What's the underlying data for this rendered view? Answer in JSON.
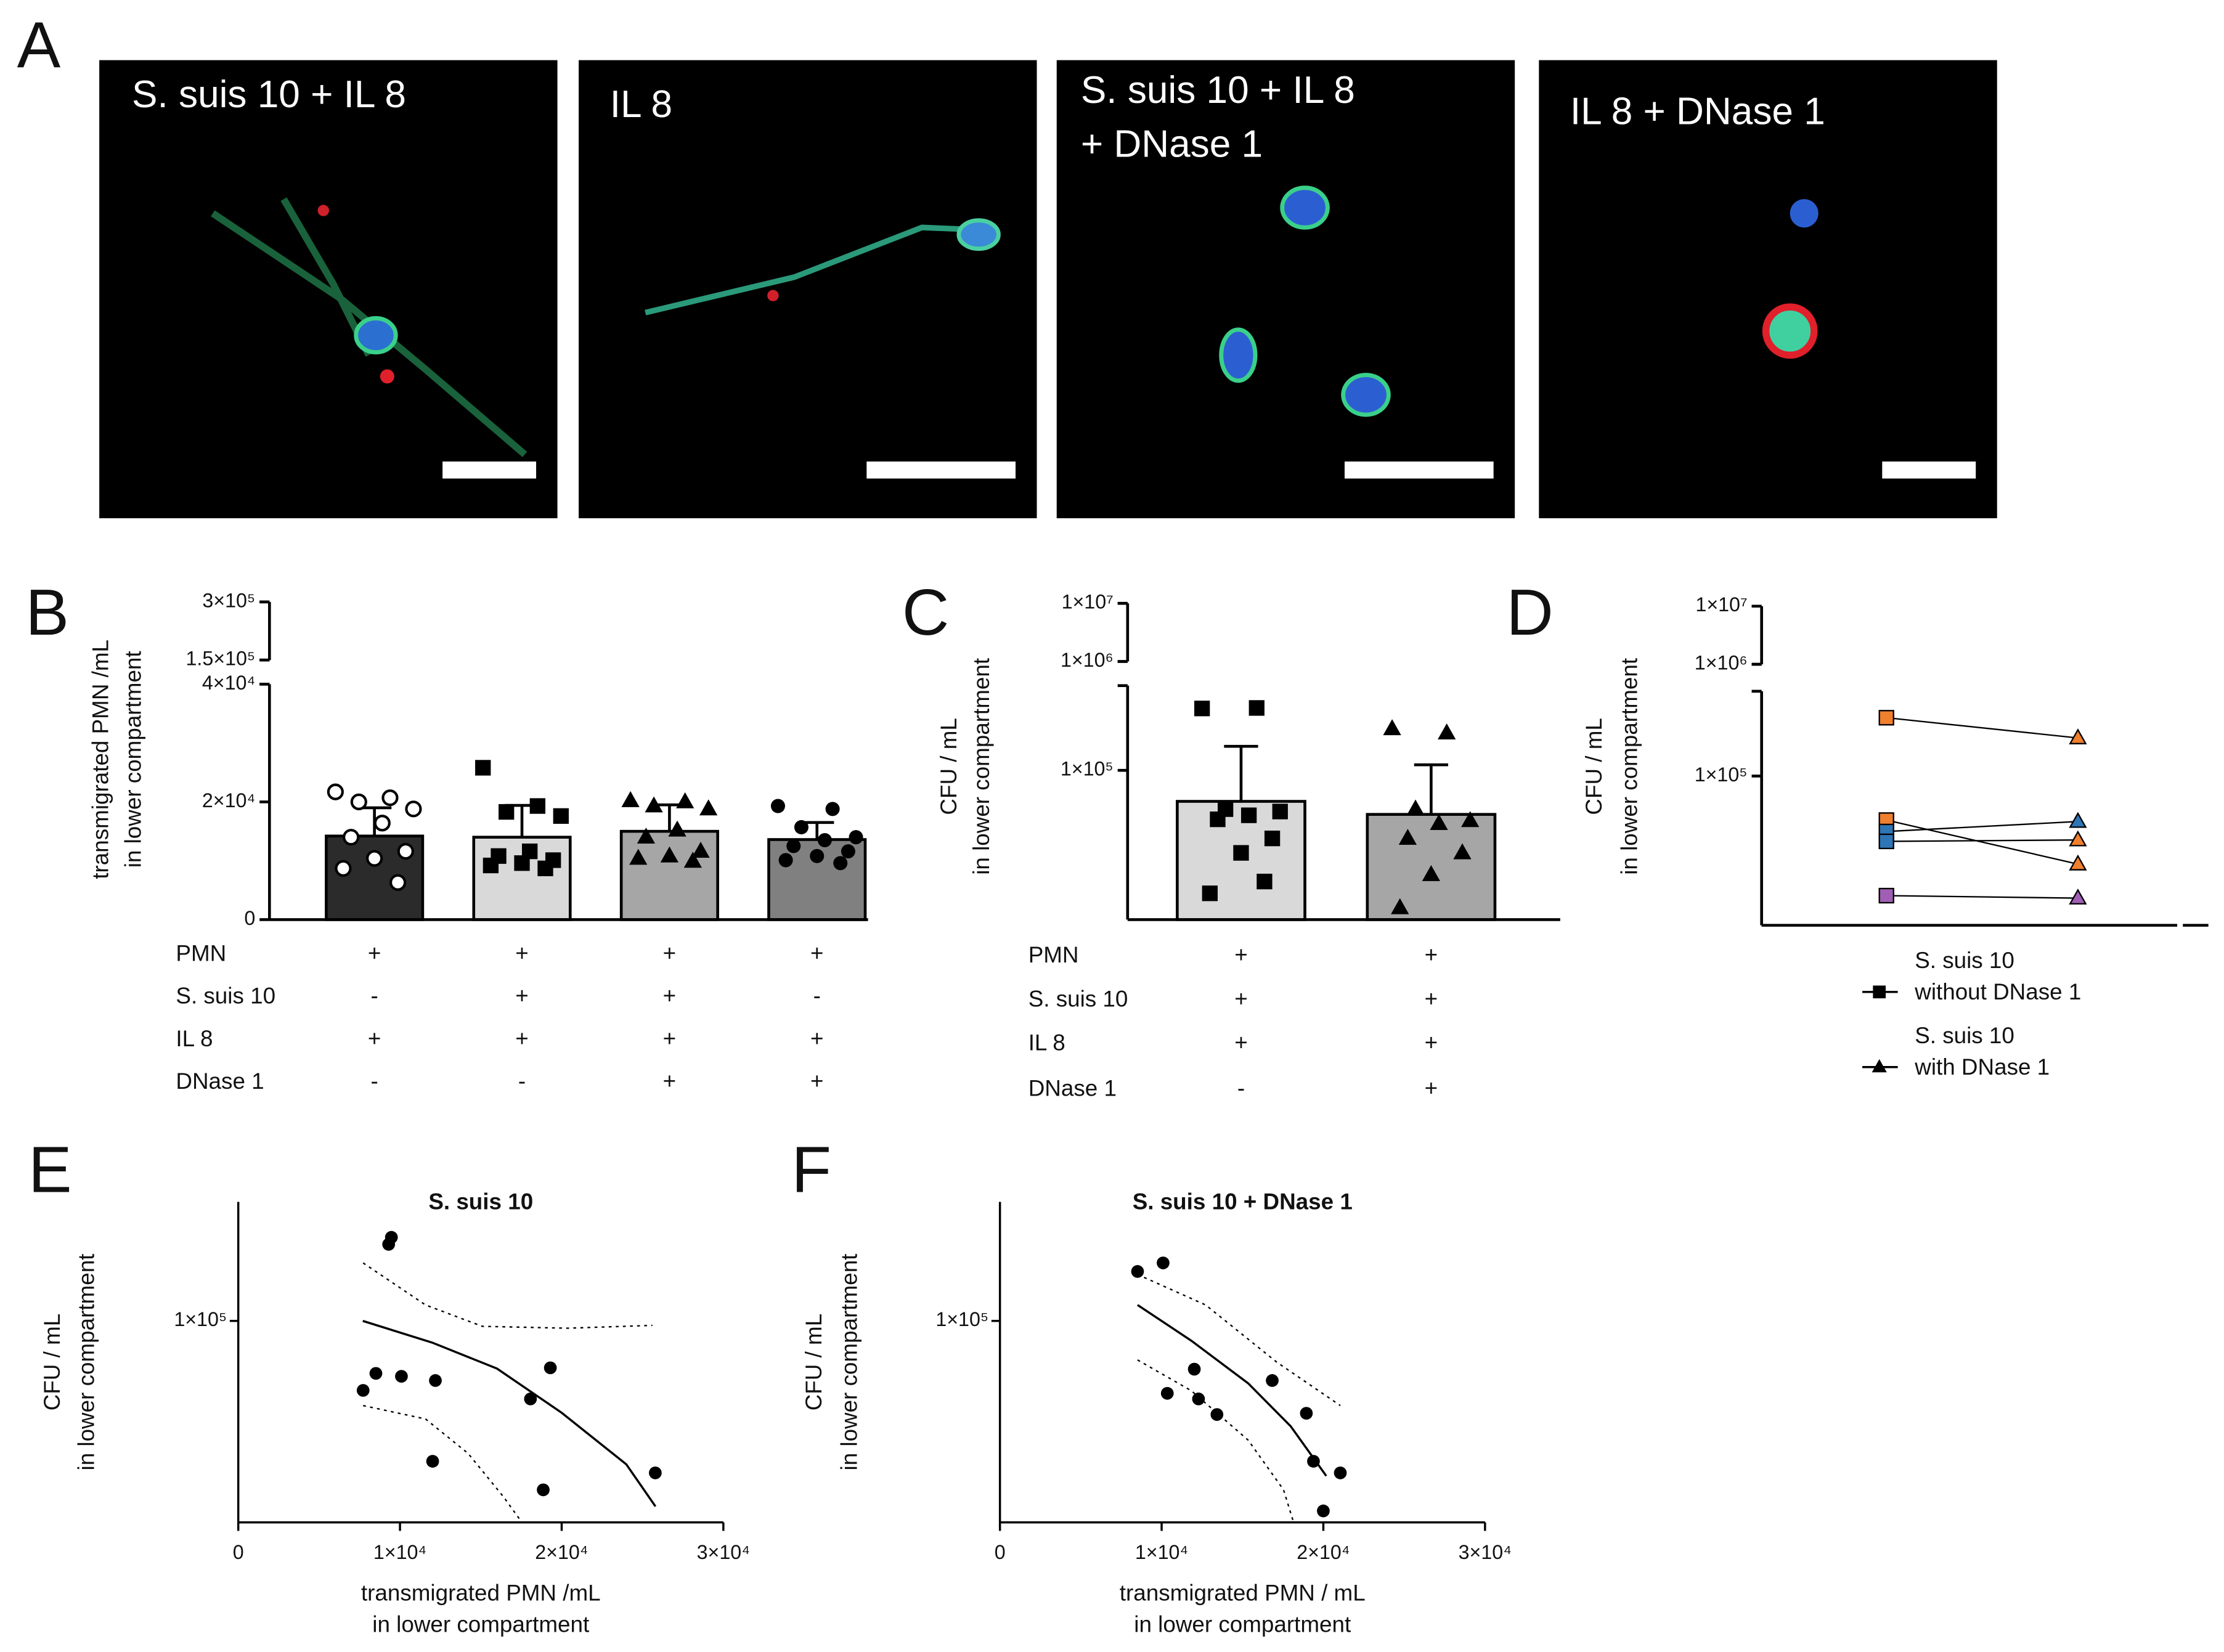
{
  "panel_a": {
    "label": "A",
    "images": [
      {
        "title": [
          "S. suis 10 + IL 8"
        ]
      },
      {
        "title": [
          "IL 8"
        ]
      },
      {
        "title": [
          "S. suis 10 + IL 8",
          "+ DNase 1"
        ]
      },
      {
        "title": [
          "IL 8 + DNase 1"
        ]
      }
    ]
  },
  "chart_data": [
    {
      "type": "bar",
      "panel": "B",
      "ylabel": [
        "transmigrated PMN /mL",
        "in lower compartment"
      ],
      "yscale": "linear",
      "ylim": [
        0,
        40000
      ],
      "yticks": [
        0,
        {
          "value": 20000,
          "label": "2×10⁴"
        },
        {
          "value": 40000,
          "label": "4×10⁴"
        }
      ],
      "ylim_upper": [
        150000,
        300000
      ],
      "yticks_upper": [
        {
          "value": 150000,
          "label": "1.5×10⁵"
        },
        {
          "value": 300000,
          "label": "3×10⁵"
        }
      ],
      "values": [
        14200,
        14000,
        15000,
        13600
      ],
      "errors": [
        4800,
        5400,
        4500,
        2900
      ],
      "colors": [
        "#2b2b2b",
        "#d9d9d9",
        "#a6a6a6",
        "#808080"
      ],
      "points": [
        [
          21700,
          20700,
          20000,
          18800,
          16400,
          14000,
          11600,
          10400,
          8700,
          6300
        ],
        [
          25800,
          19300,
          18300,
          17600,
          11600,
          10800,
          10100,
          9600,
          9200,
          8700
        ],
        [
          20200,
          20000,
          19300,
          18800,
          15200,
          14000,
          11600,
          10800,
          10400,
          9900
        ],
        [
          19300,
          18800,
          15700,
          14000,
          13500,
          12500,
          11600,
          10800,
          10100,
          9600
        ]
      ],
      "conditions": [
        {
          "name": "PMN",
          "signs": [
            "+",
            "+",
            "+",
            "+"
          ]
        },
        {
          "name": "S. suis 10",
          "signs": [
            "-",
            "+",
            "+",
            "-"
          ]
        },
        {
          "name": "IL 8",
          "signs": [
            "+",
            "+",
            "+",
            "+"
          ]
        },
        {
          "name": "DNase 1",
          "signs": [
            "-",
            "-",
            "+",
            "+"
          ]
        }
      ]
    },
    {
      "type": "bar",
      "panel": "C",
      "ylabel": [
        "CFU / mL",
        "in lower compartment"
      ],
      "yscale": "log",
      "ylim": [
        10000,
        370000
      ],
      "yticks": [
        {
          "value": 100000,
          "label": "1×10⁵"
        }
      ],
      "ylim_upper": [
        1000000,
        10000000
      ],
      "yticks_upper": [
        {
          "value": 1000000,
          "label": "1×10⁶"
        },
        {
          "value": 10000000,
          "label": "1×10⁷"
        }
      ],
      "values": [
        62000,
        50700
      ],
      "errors": [
        83000,
        58300
      ],
      "colors": [
        "#d9d9d9",
        "#a6a6a6"
      ],
      "points": [
        [
          260000,
          262000,
          55000,
          53000,
          50000,
          47000,
          35000,
          28000,
          15000,
          18000
        ],
        [
          190000,
          178000,
          55000,
          46000,
          44000,
          35000,
          28000,
          20000,
          12000
        ]
      ],
      "conditions": [
        {
          "name": "PMN",
          "signs": [
            "+",
            "+"
          ]
        },
        {
          "name": "S. suis 10",
          "signs": [
            "+",
            "+"
          ]
        },
        {
          "name": "IL 8",
          "signs": [
            "+",
            "+"
          ]
        },
        {
          "name": "DNase 1",
          "signs": [
            "-",
            "+"
          ]
        }
      ]
    },
    {
      "type": "paired",
      "panel": "D",
      "ylabel": [
        "CFU / mL",
        "in lower compartment"
      ],
      "yscale": "log",
      "ylim": [
        10000,
        370000
      ],
      "yticks": [
        {
          "value": 100000,
          "label": "1×10⁵"
        }
      ],
      "ylim_upper": [
        1000000,
        10000000
      ],
      "yticks_upper": [
        {
          "value": 1000000,
          "label": "1×10⁶"
        },
        {
          "value": 10000000,
          "label": "1×10⁷"
        }
      ],
      "series": [
        {
          "name": [
            "S. suis 10",
            "without DNase 1"
          ],
          "color": "#000000",
          "values": [
            246000,
            50700,
            42500,
            36500,
            15800
          ],
          "colors": [
            "#f07f2e",
            "#f07f2e",
            "#2e75b6",
            "#2e75b6",
            "#a05fb4"
          ]
        },
        {
          "name": [
            "S. suis 10",
            "with DNase 1"
          ],
          "color": "#000000",
          "values": [
            180000,
            25700,
            49600,
            37300,
            15200
          ],
          "colors": [
            "#f07f2e",
            "#f07f2e",
            "#2e75b6",
            "#f07f2e",
            "#a05fb4"
          ]
        }
      ]
    },
    {
      "type": "scatter",
      "panel": "E",
      "title": "S. suis 10",
      "xlabel": [
        "transmigrated PMN /mL",
        "in lower compartment"
      ],
      "ylabel": [
        "CFU / mL",
        "in lower compartment"
      ],
      "xlim": [
        0,
        30000
      ],
      "xticks": [
        0,
        {
          "value": 10000,
          "label": "1×10⁴"
        },
        {
          "value": 20000,
          "label": "2×10⁴"
        },
        {
          "value": 30000,
          "label": "3×10⁴"
        }
      ],
      "yscale": "log",
      "ylim": [
        10000,
        390000
      ],
      "yticks": [
        {
          "value": 100000,
          "label": "1×10⁵"
        }
      ],
      "x": [
        7720,
        8510,
        10090,
        12190,
        12020,
        9300,
        9470,
        18070,
        18860,
        19300,
        25790
      ],
      "y": [
        45200,
        54900,
        53100,
        50600,
        20100,
        240000,
        260000,
        41000,
        14500,
        58500,
        17600
      ],
      "fit": {
        "x": [
          7700,
          12000,
          16000,
          20000,
          24000,
          25800
        ],
        "y": [
          100000,
          78000,
          58000,
          35000,
          19400,
          12000
        ]
      },
      "ci_upper": {
        "x": [
          7720,
          11580,
          15090,
          20350,
          25610
        ],
        "y": [
          194000,
          120000,
          94000,
          92000,
          95000
        ]
      },
      "ci_lower": {
        "x": [
          7720,
          11580,
          14210,
          16400,
          17540
        ],
        "y": [
          38000,
          32600,
          22000,
          13400,
          10000
        ]
      }
    },
    {
      "type": "scatter",
      "panel": "F",
      "title": "S. suis 10 + DNase 1",
      "xlabel": [
        "transmigrated PMN / mL",
        "in lower compartment"
      ],
      "ylabel": [
        "CFU / mL",
        "in lower compartment"
      ],
      "xlim": [
        0,
        30000
      ],
      "xticks": [
        0,
        {
          "value": 10000,
          "label": "1×10⁴"
        },
        {
          "value": 20000,
          "label": "2×10⁴"
        },
        {
          "value": 30000,
          "label": "3×10⁴"
        }
      ],
      "yscale": "log",
      "ylim": [
        10000,
        390000
      ],
      "yticks": [
        {
          "value": 100000,
          "label": "1×10⁵"
        }
      ],
      "x": [
        8510,
        10090,
        10350,
        12020,
        12280,
        13420,
        16840,
        18950,
        19390,
        21050,
        20000
      ],
      "y": [
        176000,
        194000,
        43700,
        57600,
        41000,
        34300,
        50600,
        34800,
        20100,
        17600,
        11400
      ],
      "fit": {
        "x": [
          8510,
          11840,
          15350,
          17980,
          20180
        ],
        "y": [
          120000,
          79700,
          49000,
          30000,
          17000
        ]
      },
      "ci_upper": {
        "x": [
          8510,
          12720,
          17110,
          21050
        ],
        "y": [
          170000,
          120000,
          62500,
          38000
        ]
      },
      "ci_lower": {
        "x": [
          8510,
          11840,
          15350,
          17540,
          18160
        ],
        "y": [
          64000,
          45000,
          25600,
          14500,
          10000
        ]
      }
    }
  ]
}
